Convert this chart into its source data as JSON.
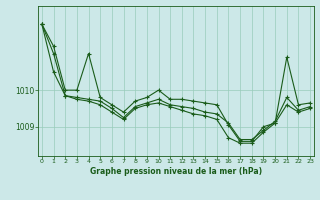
{
  "title": "Graphe pression niveau de la mer (hPa)",
  "background_color": "#cce8e8",
  "grid_color": "#99ccbb",
  "line_color": "#1a5c1a",
  "x_labels": [
    "0",
    "1",
    "2",
    "3",
    "4",
    "5",
    "6",
    "7",
    "8",
    "9",
    "10",
    "11",
    "12",
    "13",
    "14",
    "15",
    "16",
    "17",
    "18",
    "19",
    "20",
    "21",
    "22",
    "23"
  ],
  "x_values": [
    0,
    1,
    2,
    3,
    4,
    5,
    6,
    7,
    8,
    9,
    10,
    11,
    12,
    13,
    14,
    15,
    16,
    17,
    18,
    19,
    20,
    21,
    22,
    23
  ],
  "series1": [
    1011.8,
    1011.2,
    1010.0,
    1010.0,
    1011.0,
    1009.8,
    1009.6,
    1009.4,
    1009.7,
    1009.8,
    1010.0,
    1009.75,
    1009.75,
    1009.7,
    1009.65,
    1009.6,
    1009.05,
    1008.6,
    1008.6,
    1009.0,
    1009.1,
    1010.9,
    1009.6,
    1009.65
  ],
  "series2": [
    1011.8,
    1011.0,
    1009.85,
    1009.8,
    1009.75,
    1009.7,
    1009.5,
    1009.25,
    1009.55,
    1009.65,
    1009.75,
    1009.6,
    1009.55,
    1009.5,
    1009.4,
    1009.35,
    1009.1,
    1008.65,
    1008.65,
    1008.9,
    1009.15,
    1009.8,
    1009.45,
    1009.55
  ],
  "series3": [
    1011.8,
    1010.5,
    1009.85,
    1009.75,
    1009.7,
    1009.6,
    1009.4,
    1009.2,
    1009.5,
    1009.6,
    1009.65,
    1009.55,
    1009.45,
    1009.35,
    1009.3,
    1009.2,
    1008.7,
    1008.55,
    1008.55,
    1008.85,
    1009.1,
    1009.6,
    1009.4,
    1009.5
  ],
  "yticks": [
    1009,
    1010
  ],
  "ylim": [
    1008.2,
    1012.3
  ],
  "xlim": [
    -0.3,
    23.3
  ]
}
